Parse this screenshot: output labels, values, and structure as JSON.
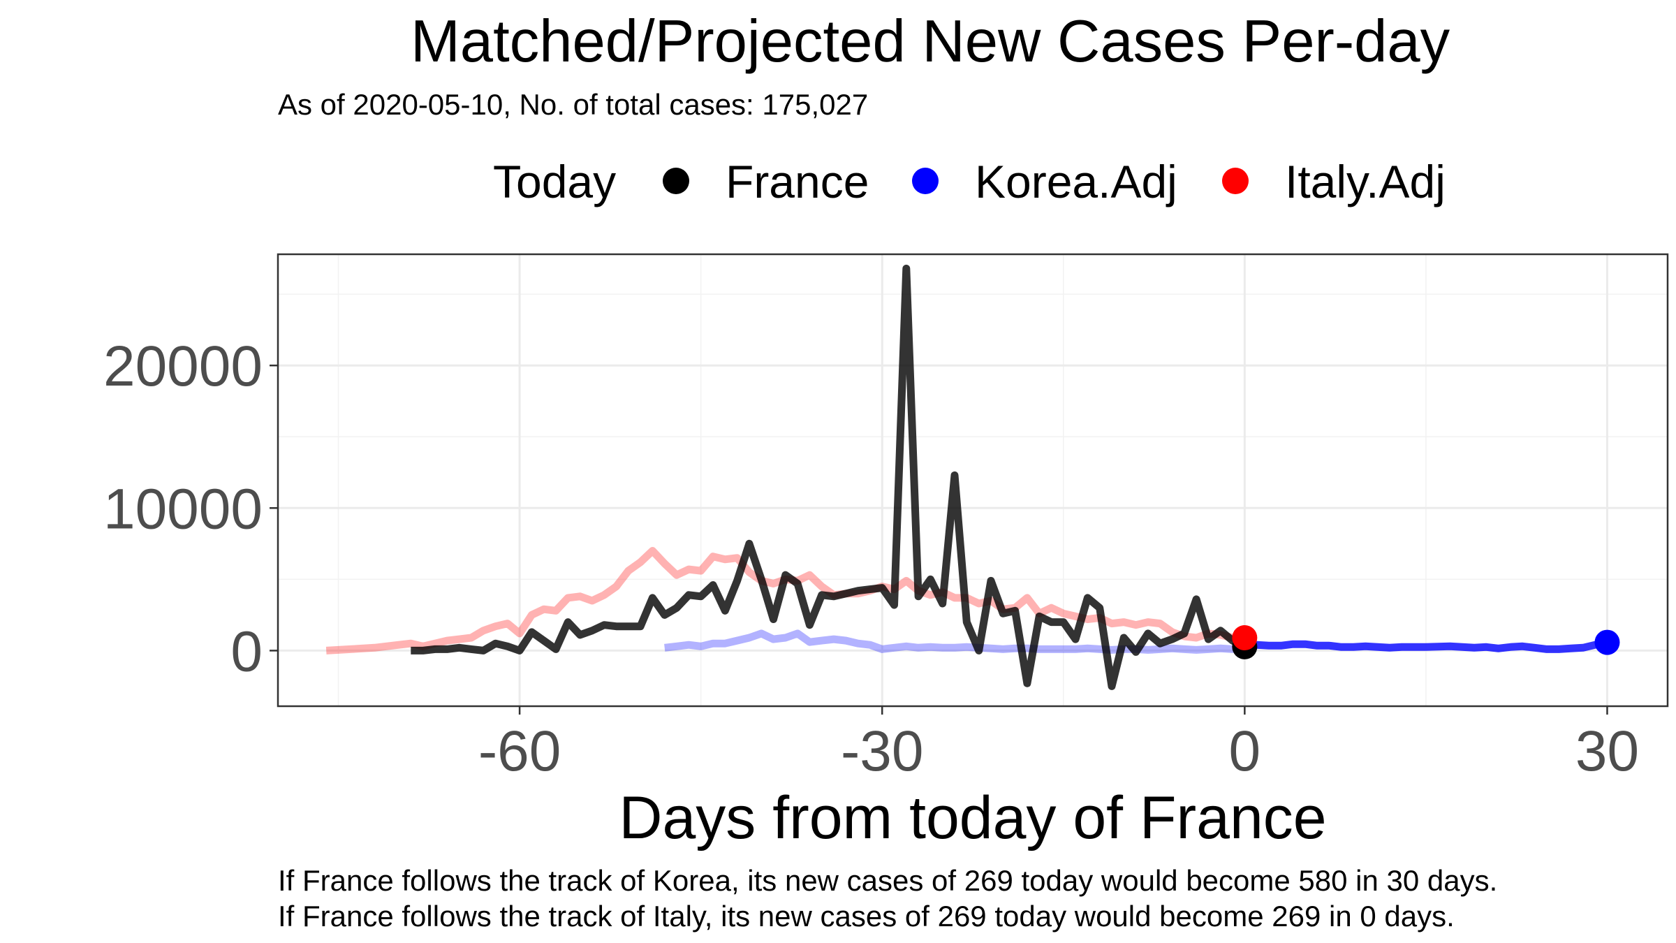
{
  "chart_data": {
    "type": "line",
    "title": "Matched/Projected New Cases Per-day",
    "subtitle": "As of 2020-05-10, No. of total cases: 175,027",
    "legend": {
      "title": "Today",
      "position": "top",
      "items": [
        {
          "label": "France",
          "color": "#000000"
        },
        {
          "label": "Korea.Adj",
          "color": "#0000ff"
        },
        {
          "label": "Italy.Adj",
          "color": "#ff0000"
        }
      ]
    },
    "xlabel": "Days from today of France",
    "ylabel": "",
    "xlim": [
      -80,
      35
    ],
    "ylim": [
      -3900,
      27800
    ],
    "x_ticks": [
      -60,
      -30,
      0,
      30
    ],
    "y_ticks": [
      0,
      10000,
      20000
    ],
    "x_tick_labels": [
      "-60",
      "-30",
      "0",
      "30"
    ],
    "y_tick_labels": [
      "0",
      "10000",
      "20000"
    ],
    "grid": true,
    "captions": [
      "If France follows the track of Korea, its new cases of 269 today would become 580 in 30 days.",
      "If France follows the track of Italy, its new cases of 269 today would become 269 in 0 days."
    ],
    "series": [
      {
        "name": "Italy.Adj",
        "color": "#ff0000",
        "opacity": 0.3,
        "x": [
          -76,
          -74,
          -72,
          -70,
          -69,
          -68,
          -67,
          -66,
          -65,
          -64,
          -63,
          -62,
          -61,
          -60,
          -59,
          -58,
          -57,
          -56,
          -55,
          -54,
          -53,
          -52,
          -51,
          -50,
          -49,
          -48,
          -47,
          -46,
          -45,
          -44,
          -43,
          -42,
          -41,
          -40,
          -39,
          -38,
          -37,
          -36,
          -35,
          -34,
          -33,
          -32,
          -31,
          -30,
          -29,
          -28,
          -27,
          -26,
          -25,
          -24,
          -23,
          -22,
          -21,
          -20,
          -19,
          -18,
          -17,
          -16,
          -15,
          -14,
          -13,
          -12,
          -11,
          -10,
          -9,
          -8,
          -7,
          -6,
          -5,
          -4,
          -3,
          -2,
          -1,
          0
        ],
        "y": [
          0,
          100,
          200,
          400,
          500,
          300,
          500,
          700,
          800,
          900,
          1400,
          1700,
          1900,
          1200,
          2500,
          2900,
          2800,
          3700,
          3800,
          3500,
          3900,
          4500,
          5600,
          6200,
          7000,
          6100,
          5300,
          5700,
          5600,
          6600,
          6400,
          6500,
          5500,
          4900,
          4700,
          5000,
          4900,
          5300,
          4500,
          3900,
          4000,
          4000,
          4200,
          4500,
          4300,
          4900,
          4200,
          3900,
          4100,
          3700,
          3700,
          3300,
          3500,
          2900,
          3000,
          3700,
          2600,
          3000,
          2600,
          2400,
          2200,
          2300,
          1900,
          2000,
          1800,
          2000,
          1900,
          1300,
          1000,
          900,
          1200,
          1100,
          900,
          900
        ]
      },
      {
        "name": "Korea.Adj",
        "color": "#0000ff",
        "opacity": 0.3,
        "x": [
          -48,
          -47,
          -46,
          -45,
          -44,
          -43,
          -42,
          -41,
          -40,
          -39,
          -38,
          -37,
          -36,
          -35,
          -34,
          -33,
          -32,
          -31,
          -30,
          -29,
          -28,
          -27,
          -26,
          -25,
          -24,
          -23,
          -22,
          -21,
          -20,
          -19,
          -18,
          -17,
          -16,
          -15,
          -14,
          -13,
          -12,
          -11,
          -10,
          -9,
          -8,
          -7,
          -6,
          -5,
          -4,
          -3,
          -2,
          -1,
          0
        ],
        "y": [
          200,
          300,
          400,
          300,
          500,
          500,
          700,
          900,
          1200,
          800,
          900,
          1200,
          600,
          700,
          800,
          700,
          500,
          400,
          100,
          200,
          300,
          200,
          250,
          200,
          200,
          250,
          200,
          150,
          100,
          150,
          150,
          100,
          100,
          100,
          100,
          150,
          100,
          50,
          100,
          100,
          50,
          100,
          150,
          100,
          50,
          100,
          150,
          100,
          269
        ]
      },
      {
        "name": "France",
        "color": "#000000",
        "opacity": 0.8,
        "x": [
          -69,
          -68,
          -67,
          -66,
          -65,
          -64,
          -63,
          -62,
          -61,
          -60,
          -59,
          -58,
          -57,
          -56,
          -55,
          -54,
          -53,
          -52,
          -51,
          -50,
          -49,
          -48,
          -47,
          -46,
          -45,
          -44,
          -43,
          -42,
          -41,
          -40,
          -39,
          -38,
          -37,
          -36,
          -35,
          -34,
          -33,
          -32,
          -31,
          -30,
          -29,
          -28,
          -27,
          -26,
          -25,
          -24,
          -23,
          -22,
          -21,
          -20,
          -19,
          -18,
          -17,
          -16,
          -15,
          -14,
          -13,
          -12,
          -11,
          -10,
          -9,
          -8,
          -7,
          -6,
          -5,
          -4,
          -3,
          -2,
          -1,
          0
        ],
        "y": [
          0,
          0,
          100,
          100,
          200,
          100,
          0,
          500,
          300,
          0,
          1300,
          700,
          100,
          2000,
          1100,
          1400,
          1800,
          1700,
          1700,
          1700,
          3700,
          2500,
          3000,
          3900,
          3800,
          4600,
          2800,
          4900,
          7500,
          5000,
          2200,
          5300,
          4700,
          1800,
          3900,
          3800,
          4000,
          4200,
          4300,
          4400,
          3200,
          26800,
          3800,
          5000,
          3300,
          12300,
          2000,
          0,
          4900,
          2600,
          2800,
          -2300,
          2400,
          2000,
          2000,
          800,
          3700,
          3000,
          -2500,
          900,
          -100,
          1200,
          500,
          800,
          1200,
          3600,
          800,
          1400,
          700,
          269
        ]
      },
      {
        "name": "Korea.Adj projection",
        "color": "#0000ff",
        "opacity": 0.8,
        "x": [
          0,
          1,
          2,
          3,
          4,
          5,
          6,
          7,
          8,
          9,
          10,
          11,
          12,
          13,
          14,
          15,
          17,
          18,
          19,
          20,
          21,
          22,
          23,
          24,
          25,
          26,
          27,
          28,
          29,
          30
        ],
        "y": [
          269,
          400,
          350,
          350,
          450,
          450,
          350,
          350,
          250,
          250,
          300,
          250,
          200,
          250,
          250,
          250,
          300,
          250,
          200,
          250,
          150,
          250,
          300,
          200,
          100,
          100,
          150,
          200,
          400,
          580
        ]
      }
    ],
    "points": [
      {
        "name": "France",
        "x": 0,
        "y": 269,
        "color": "#000000"
      },
      {
        "name": "Italy.Adj",
        "x": 0,
        "y": 900,
        "color": "#ff0000"
      },
      {
        "name": "Korea.Adj",
        "x": 30,
        "y": 580,
        "color": "#0000ff"
      }
    ]
  }
}
